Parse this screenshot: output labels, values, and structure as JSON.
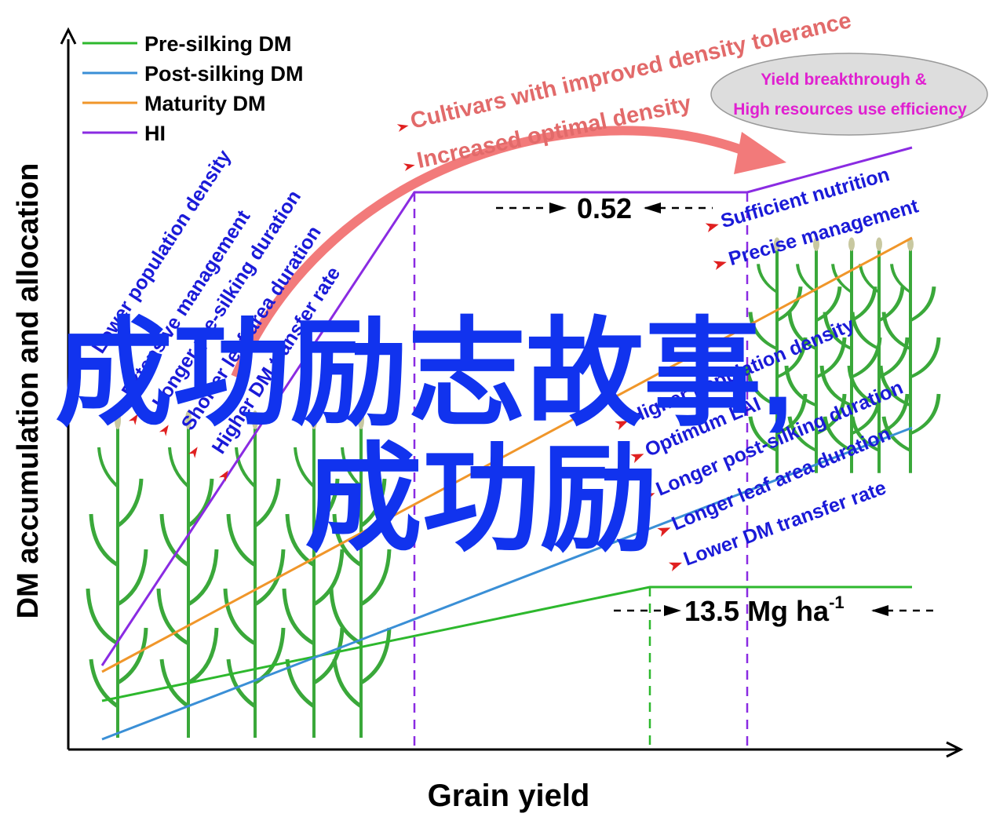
{
  "axes": {
    "y_label": "DM accumulation and allocation",
    "x_label": "Grain yield"
  },
  "legend": [
    {
      "label": "Pre-silking DM",
      "color": "#2db82d"
    },
    {
      "label": "Post-silking DM",
      "color": "#3a8fd6"
    },
    {
      "label": "Maturity DM",
      "color": "#f0962a"
    },
    {
      "label": "HI",
      "color": "#8a2be2"
    }
  ],
  "hi_gap_label": "0.52",
  "yield_label": "13.5 Mg ha",
  "yield_unit_superscript": "-1",
  "strategy_annotations": [
    "Cultivars with improved density tolerance",
    "Increased optimal density"
  ],
  "ellipse_text": {
    "line1": "Yield breakthrough &",
    "line2": "High resources use efficiency"
  },
  "left_conditions": [
    "Lower population density",
    "Extensive management",
    "Longer pre-silking duration",
    "Shorter leaf area duration",
    "Higher DM transfer rate"
  ],
  "right_top_conditions": [
    "Sufficient nutrition",
    "Precise management"
  ],
  "right_conditions": [
    "Higher population density",
    "Optimum LAI",
    "Longer  post-silking duration",
    "Longer leaf area duration",
    "Lower DM transfer rate"
  ],
  "watermark": {
    "line1": "成功励志故事,",
    "line2": "成功励"
  },
  "colors": {
    "annotation_red": "#e26a6a",
    "ellipse_text": "#e020d0",
    "blue_text": "#1a1ad8",
    "watermark": "#1133ee",
    "curve_arrow": "#f27a7a",
    "plant_green": "#3aa83a"
  }
}
